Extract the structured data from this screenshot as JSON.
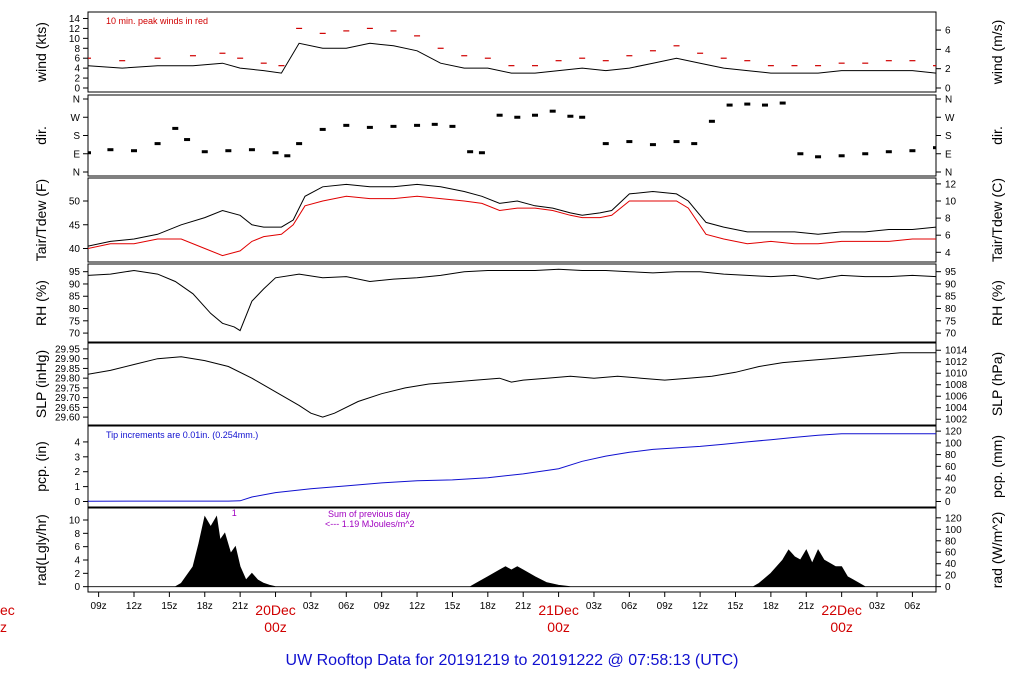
{
  "title": "UW Rooftop Data for 20191219  to  20191222 @ 07:58:13  (UTC)",
  "chart_data": {
    "type": "line",
    "x_hour_ticks": [
      "09z",
      "12z",
      "15z",
      "18z",
      "21z",
      "03z",
      "06z",
      "09z",
      "12z",
      "15z",
      "18z",
      "21z",
      "03z",
      "06z",
      "09z",
      "12z",
      "15z",
      "18z",
      "21z",
      "03z",
      "06z"
    ],
    "day_labels": [
      {
        "day": "20Dec",
        "time": "00z"
      },
      {
        "day": "21Dec",
        "time": "00z"
      },
      {
        "day": "22Dec",
        "time": "00z"
      }
    ],
    "left_partial_label": {
      "day": "ec",
      "time": "z"
    },
    "x_range_hours": [
      8.1,
      80.0
    ],
    "panels": [
      {
        "id": "wind",
        "ylabel_left": "wind (kts)",
        "ylabel_right": "wind (m/s)",
        "left_ticks": [
          "0",
          "2",
          "4",
          "6",
          "8",
          "10",
          "12",
          "14"
        ],
        "right_ticks": [
          "0",
          "2",
          "4",
          "6"
        ],
        "ylim": [
          0,
          14.5
        ],
        "right_to_left_factor": 1.944,
        "annotation": "10 min. peak winds in red",
        "annotation_color": "#d00000",
        "series": [
          {
            "name": "wind",
            "color": "#000000",
            "x": [
              8.1,
              11,
              14,
              17,
              19.5,
              21,
              23,
              24.5,
              26,
              28,
              30,
              32,
              34,
              36,
              38,
              40,
              42,
              44,
              46,
              48,
              50,
              52,
              54,
              56,
              58,
              60,
              62,
              64,
              66,
              68,
              70,
              72,
              74,
              76,
              78,
              80
            ],
            "y": [
              4.5,
              4.0,
              4.5,
              4.5,
              5.0,
              4.0,
              3.5,
              3.0,
              9.0,
              8.0,
              8.0,
              9.0,
              8.5,
              7.5,
              5.0,
              4.0,
              4.0,
              3.0,
              3.0,
              3.5,
              4.0,
              3.5,
              4.0,
              5.0,
              6.0,
              5.0,
              4.0,
              3.5,
              3.0,
              3.0,
              3.0,
              3.5,
              3.5,
              3.5,
              3.5,
              3.0
            ]
          },
          {
            "name": "peak",
            "color": "#d00000",
            "style": "dash",
            "x": [
              8.1,
              11,
              14,
              17,
              19.5,
              21,
              23,
              24.5,
              26,
              28,
              30,
              32,
              34,
              36,
              38,
              40,
              42,
              44,
              46,
              48,
              50,
              52,
              54,
              56,
              58,
              60,
              62,
              64,
              66,
              68,
              70,
              72,
              74,
              76,
              78,
              80
            ],
            "y": [
              6.0,
              5.5,
              6.0,
              6.5,
              7.0,
              6.0,
              5.0,
              4.5,
              12.0,
              11.0,
              11.5,
              12.0,
              11.5,
              10.5,
              8.0,
              6.5,
              6.0,
              4.5,
              4.5,
              5.5,
              6.0,
              5.5,
              6.5,
              7.5,
              8.5,
              7.0,
              6.0,
              5.5,
              4.5,
              4.5,
              4.5,
              5.0,
              5.0,
              5.5,
              5.5,
              4.5
            ]
          }
        ]
      },
      {
        "id": "dir",
        "ylabel_left": "dir.",
        "ylabel_right": "dir.",
        "left_ticks": [
          "N",
          "E",
          "S",
          "W",
          "N"
        ],
        "right_ticks": [
          "N",
          "E",
          "S",
          "W",
          "N"
        ],
        "ylim": [
          0,
          360
        ],
        "series": [
          {
            "name": "direction",
            "color": "#000000",
            "style": "dots",
            "x": [
              8.1,
              10,
              12,
              14,
              15.5,
              16.5,
              18,
              20,
              22,
              24,
              25,
              26,
              28,
              30,
              32,
              34,
              36,
              37.5,
              39,
              40.5,
              41.5,
              43,
              44.5,
              46,
              47.5,
              49,
              50,
              52,
              54,
              56,
              58,
              59.5,
              61,
              62.5,
              64,
              65.5,
              67,
              68.5,
              70,
              72,
              74,
              76,
              78,
              80
            ],
            "y": [
              95,
              110,
              105,
              140,
              215,
              160,
              100,
              105,
              110,
              95,
              80,
              140,
              210,
              230,
              220,
              225,
              230,
              235,
              225,
              100,
              95,
              280,
              270,
              280,
              300,
              275,
              270,
              140,
              150,
              135,
              150,
              140,
              250,
              330,
              335,
              330,
              340,
              90,
              75,
              80,
              90,
              100,
              105,
              120
            ]
          }
        ]
      },
      {
        "id": "temp",
        "ylabel_left": "Tair/Tdew (F)",
        "ylabel_right": "Tair/Tdew (C)",
        "left_ticks": [
          "40",
          "45",
          "50"
        ],
        "right_ticks": [
          "4",
          "6",
          "8",
          "10",
          "12"
        ],
        "ylim": [
          38,
          54
        ],
        "series": [
          {
            "name": "Tair",
            "color": "#000000",
            "x": [
              8.1,
              10,
              12,
              14,
              16,
              18,
              19.5,
              21,
              22,
              23,
              24.5,
              25.5,
              26.5,
              28,
              30,
              32,
              34,
              36,
              38,
              40,
              41.5,
              43,
              44.5,
              46,
              47.5,
              49,
              50,
              51.5,
              52.5,
              54,
              56,
              58,
              59,
              60.5,
              62,
              63,
              64,
              66,
              68,
              70,
              72,
              74,
              76,
              78,
              80
            ],
            "y": [
              40.5,
              41.5,
              42.0,
              43.0,
              45.0,
              46.5,
              48.0,
              47.0,
              45.0,
              44.5,
              44.5,
              46.0,
              51.0,
              53.0,
              53.5,
              53.0,
              53.0,
              53.5,
              53.0,
              52.0,
              51.0,
              49.5,
              50.0,
              49.0,
              48.5,
              47.5,
              47.0,
              47.5,
              48.0,
              51.5,
              52.0,
              51.5,
              50.0,
              45.5,
              44.5,
              44.0,
              43.5,
              43.5,
              43.5,
              43.0,
              43.5,
              43.5,
              44.0,
              44.0,
              44.5
            ]
          },
          {
            "name": "Tdew",
            "color": "#e00000",
            "x": [
              8.1,
              10,
              12,
              14,
              16,
              18,
              19.5,
              21,
              22,
              23,
              24.5,
              25.5,
              26.5,
              28,
              30,
              32,
              34,
              36,
              38,
              40,
              41.5,
              43,
              44.5,
              46,
              47.5,
              49,
              50,
              51.5,
              52.5,
              54,
              56,
              58,
              59,
              60.5,
              62,
              63,
              64,
              66,
              68,
              70,
              72,
              74,
              76,
              78,
              80
            ],
            "y": [
              40.0,
              41.0,
              41.0,
              42.0,
              42.0,
              40.0,
              38.5,
              39.5,
              41.5,
              42.5,
              43.0,
              45.0,
              49.0,
              50.0,
              51.0,
              50.5,
              50.5,
              51.0,
              50.5,
              50.0,
              49.5,
              48.0,
              48.5,
              48.5,
              48.0,
              47.0,
              46.5,
              46.5,
              47.0,
              50.0,
              50.0,
              50.0,
              48.5,
              43.0,
              42.0,
              41.5,
              41.0,
              41.5,
              41.0,
              41.0,
              41.5,
              41.5,
              41.5,
              42.0,
              42.0
            ]
          }
        ]
      },
      {
        "id": "rh",
        "ylabel_left": "RH (%)",
        "ylabel_right": "RH (%)",
        "left_ticks": [
          "70",
          "75",
          "80",
          "85",
          "90",
          "95"
        ],
        "right_ticks": [
          "70",
          "75",
          "80",
          "85",
          "90",
          "95"
        ],
        "ylim": [
          68,
          96.5
        ],
        "series": [
          {
            "name": "RH",
            "color": "#000000",
            "x": [
              8.1,
              10,
              12,
              14,
              15.5,
              17,
              18.5,
              19.5,
              20.5,
              21,
              22,
              23,
              24,
              26,
              28,
              30,
              32,
              34,
              36,
              38,
              40,
              42,
              44,
              46,
              48,
              50,
              52,
              54,
              56,
              58,
              60,
              62,
              64,
              66,
              68,
              70,
              72,
              74,
              76,
              78,
              80
            ],
            "y": [
              93.5,
              94.0,
              95.5,
              94.0,
              91.0,
              86.0,
              78.0,
              74.0,
              72.5,
              71.0,
              83.0,
              88.0,
              92.5,
              94.0,
              92.5,
              93.0,
              91.0,
              92.0,
              92.5,
              93.5,
              95.0,
              95.5,
              95.5,
              95.5,
              96.0,
              95.5,
              95.5,
              95.0,
              94.5,
              95.0,
              95.0,
              94.0,
              93.5,
              93.0,
              93.5,
              92.0,
              93.5,
              93.0,
              93.0,
              93.5,
              93.0
            ]
          }
        ]
      },
      {
        "id": "slp",
        "ylabel_left": "SLP (inHg)",
        "ylabel_right": "SLP (hPa)",
        "left_ticks": [
          "29.60",
          "29.65",
          "29.70",
          "29.75",
          "29.80",
          "29.85",
          "29.90",
          "29.95"
        ],
        "right_ticks": [
          "1002",
          "1004",
          "1006",
          "1008",
          "1010",
          "1012",
          "1014"
        ],
        "ylim": [
          29.58,
          29.96
        ],
        "right_unit_conversion": 33.8639,
        "series": [
          {
            "name": "SLP",
            "color": "#000000",
            "x": [
              8.1,
              10,
              12,
              14,
              16,
              18,
              20,
              22,
              24,
              26,
              27,
              28,
              29,
              31,
              33,
              35,
              37,
              39,
              41,
              43,
              44,
              45,
              47,
              49,
              51,
              53,
              55,
              57,
              59,
              61,
              63,
              65,
              67,
              69,
              71,
              73,
              75,
              77,
              79,
              80
            ],
            "y": [
              29.82,
              29.84,
              29.87,
              29.9,
              29.91,
              29.89,
              29.86,
              29.8,
              29.73,
              29.66,
              29.62,
              29.6,
              29.62,
              29.68,
              29.72,
              29.75,
              29.77,
              29.78,
              29.79,
              29.8,
              29.78,
              29.79,
              29.8,
              29.81,
              29.8,
              29.81,
              29.8,
              29.79,
              29.8,
              29.81,
              29.83,
              29.86,
              29.88,
              29.89,
              29.9,
              29.91,
              29.92,
              29.93,
              29.93,
              29.93
            ]
          }
        ]
      },
      {
        "id": "pcp",
        "ylabel_left": "pcp. (in)",
        "ylabel_right": "pcp. (mm)",
        "left_ticks": [
          "0",
          "1",
          "2",
          "3",
          "4"
        ],
        "right_ticks": [
          "0",
          "20",
          "40",
          "60",
          "80",
          "100",
          "120"
        ],
        "ylim": [
          -0.1,
          4.8
        ],
        "right_unit_conversion": 25.4,
        "annotation": "Tip increments are 0.01in. (0.254mm.)",
        "annotation_color": "#1010d0",
        "series": [
          {
            "name": "pcp",
            "color": "#1010d0",
            "x": [
              8.1,
              13,
              17,
              20,
              21,
              22,
              24,
              27,
              30,
              33,
              36,
              39,
              42,
              45,
              48,
              50,
              52,
              54,
              56,
              58,
              60,
              62,
              64,
              66,
              68,
              70,
              72,
              74,
              76,
              78,
              80
            ],
            "y": [
              0.02,
              0.03,
              0.03,
              0.03,
              0.05,
              0.3,
              0.6,
              0.85,
              1.05,
              1.25,
              1.4,
              1.45,
              1.6,
              1.85,
              2.2,
              2.7,
              3.05,
              3.3,
              3.5,
              3.6,
              3.7,
              3.85,
              4.0,
              4.15,
              4.3,
              4.45,
              4.55,
              4.55,
              4.55,
              4.55,
              4.55
            ]
          }
        ]
      },
      {
        "id": "rad",
        "ylabel_left": "rad(Lgly/hr)",
        "ylabel_right": "rad (W/m^2)",
        "left_ticks": [
          "0",
          "2",
          "4",
          "6",
          "8",
          "10"
        ],
        "right_ticks": [
          "0",
          "20",
          "40",
          "60",
          "80",
          "100",
          "120"
        ],
        "ylim": [
          -0.2,
          11.2
        ],
        "right_unit_conversion": 11.622,
        "marker_label": "1",
        "marker_x": 20.5,
        "marker_color": "#a000c0",
        "annotation_line1": "Sum of previous day",
        "annotation_line2": "<--- 1.19 MJoules/m^2",
        "annotation_color": "#a000c0",
        "series": [
          {
            "name": "rad",
            "color": "#000000",
            "style": "fill",
            "x": [
              8.1,
              15.5,
              16,
              17,
              17.5,
              18,
              18.5,
              19,
              19.3,
              19.7,
              20.2,
              20.6,
              21,
              21.5,
              22,
              22.5,
              23,
              23.5,
              24,
              40.5,
              41,
              42,
              43,
              43.5,
              44,
              44.5,
              45,
              45.5,
              46,
              47,
              48,
              49,
              64.5,
              65,
              66,
              67,
              67.5,
              68,
              68.5,
              69,
              69.5,
              70,
              70.5,
              71,
              71.5,
              72,
              72.5,
              73,
              73.5,
              74,
              80
            ],
            "y": [
              0,
              0,
              0.5,
              3.0,
              6.5,
              10.5,
              9.0,
              10.5,
              7.0,
              8.0,
              5.0,
              6.0,
              3.0,
              1.0,
              2.0,
              1.0,
              0.5,
              0.2,
              0,
              0,
              0.5,
              1.5,
              2.5,
              3.0,
              2.5,
              3.0,
              2.5,
              2.0,
              1.5,
              0.6,
              0.2,
              0,
              0,
              0.5,
              2.0,
              4.0,
              5.5,
              4.5,
              4.0,
              5.5,
              3.5,
              5.5,
              4.0,
              3.5,
              3.0,
              3.0,
              1.5,
              1.0,
              0.5,
              0,
              0
            ]
          }
        ]
      }
    ]
  }
}
